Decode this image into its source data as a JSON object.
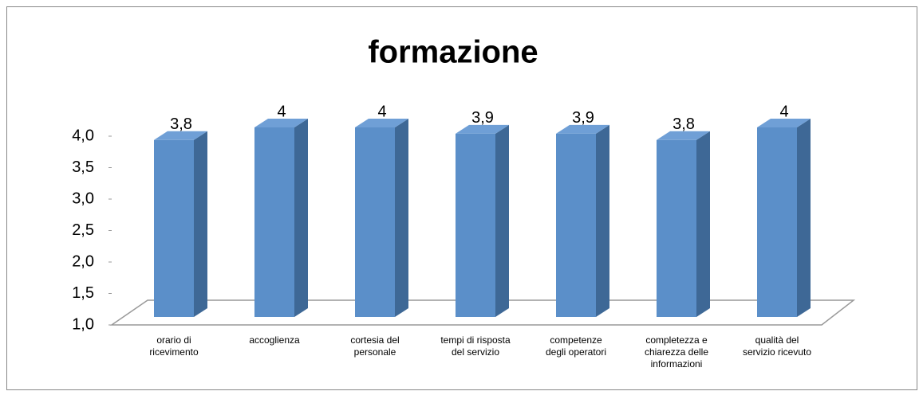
{
  "chart_data": {
    "type": "bar3d",
    "title": "formazione",
    "categories": [
      "orario di\nricevimento",
      "accoglienza",
      "cortesia del\npersonale",
      "tempi di risposta\ndel servizio",
      "competenze\ndegli operatori",
      "completezza e\nchiarezza delle\ninformazioni",
      "qualità del\nservizio ricevuto"
    ],
    "values": [
      3.8,
      4,
      4,
      3.9,
      3.9,
      3.8,
      4
    ],
    "value_labels": [
      "3,8",
      "4",
      "4",
      "3,9",
      "3,9",
      "3,8",
      "4"
    ],
    "color": "#5b8fc9",
    "ylim": [
      1,
      4
    ],
    "yticks": [
      {
        "value": 1,
        "label": "1,0"
      },
      {
        "value": 1.5,
        "label": "1,5"
      },
      {
        "value": 2,
        "label": "2,0"
      },
      {
        "value": 2.5,
        "label": "2,5"
      },
      {
        "value": 3,
        "label": "3,0"
      },
      {
        "value": 3.5,
        "label": "3,5"
      },
      {
        "value": 4,
        "label": "4,0"
      }
    ],
    "grid": false
  }
}
